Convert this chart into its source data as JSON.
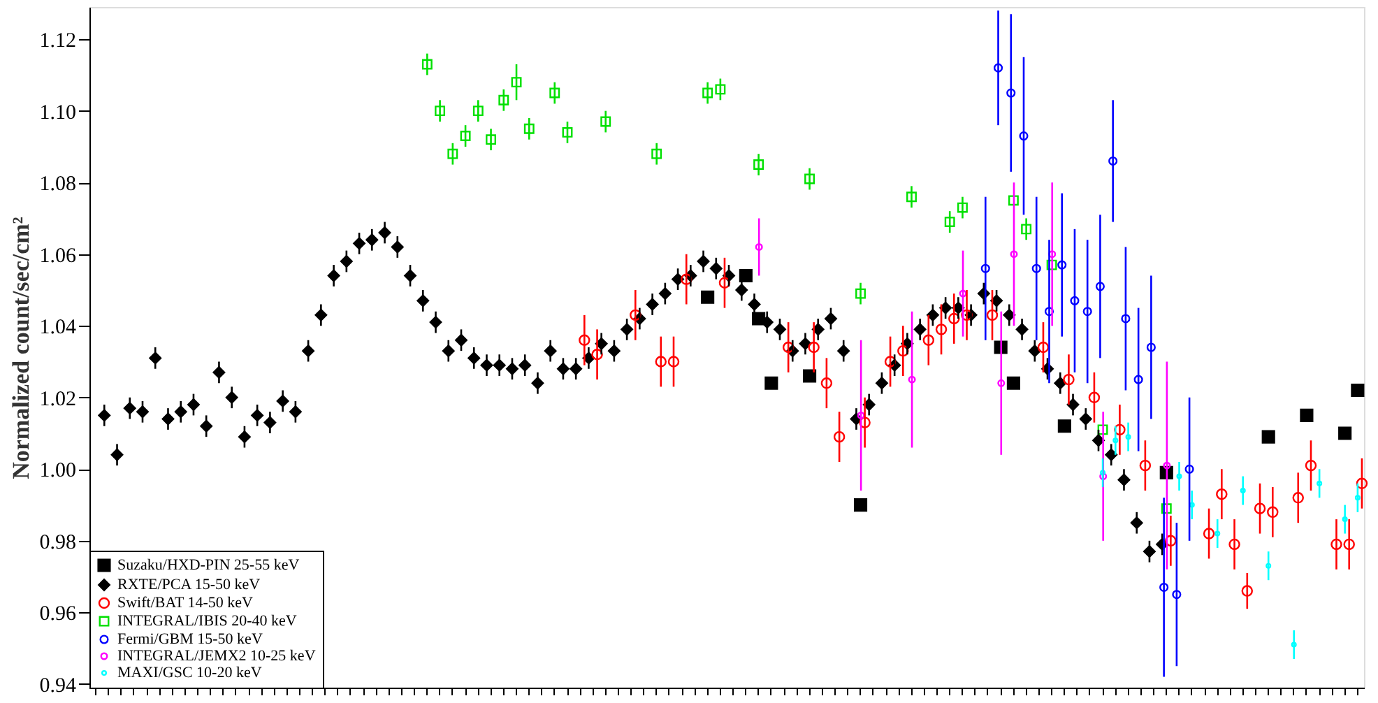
{
  "chart_data": {
    "type": "scatter",
    "ylabel": "Normalized count/sec/cm²",
    "categories": [
      null,
      null,
      null,
      null,
      null,
      null,
      null,
      null,
      null,
      null,
      null,
      null,
      null,
      null,
      null,
      null,
      null,
      null,
      null,
      null,
      null,
      null,
      null,
      null,
      null,
      null,
      null,
      null,
      null,
      null,
      null,
      null,
      null,
      null,
      null,
      null,
      null,
      null,
      null,
      null,
      null,
      null,
      null,
      null,
      null,
      null,
      null,
      null,
      null,
      null,
      null,
      null,
      null,
      null,
      null,
      null,
      null,
      null,
      null,
      null,
      null,
      null,
      null,
      null,
      null,
      null,
      null,
      null,
      null,
      null,
      null,
      null,
      null,
      null,
      null,
      null,
      null,
      null,
      null,
      null,
      null,
      null,
      null,
      null,
      null,
      null,
      null,
      null,
      null,
      null,
      null,
      null,
      null,
      null,
      null,
      null,
      null,
      null,
      null,
      null
    ],
    "ylim": [
      0.939,
      1.129
    ],
    "yticks": [
      0.94,
      0.96,
      0.98,
      {
        "value": 1.0,
        "label": "1.00"
      },
      1.02,
      1.04,
      1.06,
      1.08,
      {
        "value": 1.1,
        "label": "1.10"
      },
      1.12
    ],
    "grid": false,
    "legend": "bottom left",
    "tick_labels": "y",
    "series": [
      {
        "name": "Suzaku/HXD-PIN 25-55 keV",
        "color": "#000000",
        "marker": "square",
        "values": [
          null,
          null,
          null,
          null,
          null,
          null,
          null,
          null,
          null,
          null,
          null,
          null,
          null,
          null,
          null,
          null,
          null,
          null,
          null,
          null,
          null,
          null,
          null,
          null,
          null,
          null,
          null,
          null,
          null,
          null,
          null,
          null,
          null,
          null,
          null,
          null,
          null,
          null,
          null,
          null,
          null,
          null,
          null,
          null,
          null,
          null,
          null,
          null,
          1.048,
          null,
          null,
          1.054,
          1.042,
          1.024,
          null,
          null,
          1.026,
          null,
          null,
          null,
          0.99,
          null,
          null,
          null,
          null,
          null,
          null,
          null,
          null,
          null,
          null,
          1.034,
          1.024,
          null,
          null,
          null,
          1.012,
          null,
          null,
          null,
          null,
          null,
          null,
          null,
          0.999,
          null,
          null,
          null,
          null,
          null,
          null,
          null,
          1.009,
          null,
          null,
          1.015,
          null,
          null,
          1.01,
          1.022
        ]
      },
      {
        "name": "RXTE/PCA 15-50 keV",
        "color": "#000000",
        "marker": "diamond",
        "values": [
          null,
          1.015,
          1.004,
          1.017,
          1.016,
          1.031,
          1.014,
          1.016,
          1.018,
          1.012,
          1.027,
          1.02,
          1.009,
          1.015,
          1.013,
          1.019,
          1.016,
          1.033,
          1.043,
          1.054,
          1.058,
          1.063,
          1.064,
          1.066,
          1.062,
          1.054,
          1.047,
          1.041,
          1.033,
          1.036,
          1.031,
          1.029,
          1.029,
          1.028,
          1.029,
          1.024,
          1.033,
          1.028,
          1.028,
          1.031,
          1.035,
          1.033,
          1.039,
          1.042,
          1.046,
          1.049,
          1.053,
          1.054,
          1.058,
          1.056,
          1.054,
          1.05,
          1.046,
          1.041,
          1.039,
          1.033,
          1.035,
          1.039,
          1.042,
          1.033,
          1.014,
          1.018,
          1.024,
          1.029,
          1.035,
          1.039,
          1.043,
          1.045,
          1.045,
          1.043,
          1.049,
          1.047,
          1.043,
          1.039,
          1.033,
          1.028,
          1.024,
          1.018,
          1.014,
          1.008,
          1.004,
          0.997,
          0.985,
          0.977,
          0.979,
          null,
          null,
          null,
          null,
          null,
          null,
          null,
          null,
          null,
          null,
          null,
          null,
          null,
          null,
          null
        ],
        "errors": [
          null,
          0.003,
          0.003,
          0.003,
          0.003,
          0.003,
          0.003,
          0.003,
          0.003,
          0.003,
          0.003,
          0.003,
          0.003,
          0.003,
          0.003,
          0.003,
          0.003,
          0.003,
          0.003,
          0.003,
          0.003,
          0.003,
          0.003,
          0.003,
          0.003,
          0.003,
          0.003,
          0.003,
          0.003,
          0.003,
          0.003,
          0.003,
          0.003,
          0.003,
          0.003,
          0.003,
          0.003,
          0.003,
          0.003,
          0.003,
          0.003,
          0.003,
          0.003,
          0.003,
          0.003,
          0.003,
          0.003,
          0.003,
          0.003,
          0.003,
          0.003,
          0.003,
          0.003,
          0.003,
          0.003,
          0.003,
          0.003,
          0.003,
          0.003,
          0.003,
          0.003,
          0.003,
          0.003,
          0.003,
          0.003,
          0.003,
          0.003,
          0.003,
          0.003,
          0.003,
          0.003,
          0.003,
          0.003,
          0.003,
          0.003,
          0.003,
          0.003,
          0.003,
          0.003,
          0.003,
          0.003,
          0.003,
          0.003,
          0.003,
          0.003,
          null,
          null,
          null,
          null,
          null,
          null,
          null,
          null,
          null,
          null,
          null,
          null,
          null,
          null,
          null
        ]
      },
      {
        "name": "Swift/BAT 14-50 keV",
        "color": "#ff0000",
        "marker": "circle",
        "values": [
          null,
          null,
          null,
          null,
          null,
          null,
          null,
          null,
          null,
          null,
          null,
          null,
          null,
          null,
          null,
          null,
          null,
          null,
          null,
          null,
          null,
          null,
          null,
          null,
          null,
          null,
          null,
          null,
          null,
          null,
          null,
          null,
          null,
          null,
          null,
          null,
          null,
          null,
          1.036,
          1.032,
          null,
          null,
          1.043,
          null,
          1.03,
          1.03,
          1.053,
          null,
          null,
          1.052,
          null,
          null,
          null,
          null,
          1.034,
          null,
          1.034,
          1.024,
          1.009,
          null,
          1.013,
          null,
          1.03,
          1.033,
          null,
          1.036,
          1.039,
          1.042,
          1.043,
          null,
          1.043,
          null,
          null,
          null,
          1.034,
          null,
          1.025,
          null,
          1.02,
          null,
          1.011,
          null,
          1.001,
          null,
          0.98,
          null,
          null,
          0.982,
          0.993,
          0.979,
          0.966,
          0.989,
          0.988,
          null,
          0.992,
          1.001,
          null,
          0.979,
          0.979,
          0.996
        ],
        "errors": [
          null,
          null,
          null,
          null,
          null,
          null,
          null,
          null,
          null,
          null,
          null,
          null,
          null,
          null,
          null,
          null,
          null,
          null,
          null,
          null,
          null,
          null,
          null,
          null,
          null,
          null,
          null,
          null,
          null,
          null,
          null,
          null,
          null,
          null,
          null,
          null,
          null,
          null,
          0.007,
          0.007,
          null,
          null,
          0.007,
          null,
          0.007,
          0.007,
          0.007,
          null,
          null,
          0.007,
          null,
          null,
          null,
          null,
          0.007,
          null,
          0.007,
          0.007,
          0.007,
          null,
          0.007,
          null,
          0.007,
          0.007,
          null,
          0.007,
          0.007,
          0.007,
          0.007,
          null,
          0.007,
          null,
          null,
          null,
          0.007,
          null,
          0.007,
          null,
          0.007,
          null,
          0.007,
          null,
          0.007,
          null,
          0.007,
          null,
          null,
          0.007,
          0.007,
          0.007,
          0.005,
          0.007,
          0.007,
          null,
          0.007,
          0.007,
          null,
          0.007,
          0.007,
          0.007
        ]
      },
      {
        "name": "INTEGRAL/IBIS 20-40 keV",
        "color": "#00e000",
        "marker": "square",
        "values": [
          null,
          null,
          null,
          null,
          null,
          null,
          null,
          null,
          null,
          null,
          null,
          null,
          null,
          null,
          null,
          null,
          null,
          null,
          null,
          null,
          null,
          null,
          null,
          null,
          null,
          null,
          1.113,
          1.1,
          1.088,
          1.093,
          1.1,
          1.092,
          1.103,
          1.108,
          1.095,
          null,
          1.105,
          1.094,
          null,
          null,
          1.097,
          null,
          null,
          null,
          1.088,
          null,
          null,
          null,
          1.105,
          1.106,
          null,
          null,
          1.085,
          null,
          null,
          null,
          1.081,
          null,
          null,
          null,
          1.049,
          null,
          null,
          null,
          1.076,
          null,
          null,
          1.069,
          1.073,
          null,
          null,
          null,
          1.075,
          1.067,
          null,
          1.057,
          null,
          null,
          null,
          1.011,
          null,
          null,
          null,
          null,
          0.989,
          null,
          null,
          null,
          null,
          null,
          null,
          null,
          null,
          null,
          null,
          null,
          null,
          null,
          null,
          null
        ],
        "errors": [
          null,
          null,
          null,
          null,
          null,
          null,
          null,
          null,
          null,
          null,
          null,
          null,
          null,
          null,
          null,
          null,
          null,
          null,
          null,
          null,
          null,
          null,
          null,
          null,
          null,
          null,
          0.003,
          0.003,
          0.003,
          0.003,
          0.003,
          0.003,
          0.003,
          0.005,
          0.003,
          null,
          0.003,
          0.003,
          null,
          null,
          0.003,
          null,
          null,
          null,
          0.003,
          null,
          null,
          null,
          0.003,
          0.003,
          null,
          null,
          0.003,
          null,
          null,
          null,
          0.003,
          null,
          null,
          null,
          0.003,
          null,
          null,
          null,
          0.003,
          null,
          null,
          0.003,
          0.003,
          null,
          null,
          null,
          null,
          0.003,
          null,
          null,
          null,
          null,
          null,
          null,
          null,
          null,
          null,
          null,
          null,
          null,
          null,
          null,
          null,
          null,
          null,
          null,
          null,
          null,
          null,
          null,
          null,
          null,
          null,
          null
        ]
      },
      {
        "name": "Fermi/GBM 15-50 keV",
        "color": "#0000ff",
        "marker": "circle",
        "values": [
          null,
          null,
          null,
          null,
          null,
          null,
          null,
          null,
          null,
          null,
          null,
          null,
          null,
          null,
          null,
          null,
          null,
          null,
          null,
          null,
          null,
          null,
          null,
          null,
          null,
          null,
          null,
          null,
          null,
          null,
          null,
          null,
          null,
          null,
          null,
          null,
          null,
          null,
          null,
          null,
          null,
          null,
          null,
          null,
          null,
          null,
          null,
          null,
          null,
          null,
          null,
          null,
          null,
          null,
          null,
          null,
          null,
          null,
          null,
          null,
          null,
          null,
          null,
          null,
          null,
          null,
          null,
          null,
          null,
          null,
          1.056,
          1.112,
          1.105,
          1.093,
          1.056,
          1.044,
          1.057,
          1.047,
          1.044,
          1.051,
          1.086,
          1.042,
          1.025,
          1.034,
          0.967,
          0.965,
          1.0,
          null,
          null,
          null,
          null,
          null,
          null,
          null,
          null,
          null,
          null,
          null,
          null,
          null
        ],
        "errors": [
          null,
          null,
          null,
          null,
          null,
          null,
          null,
          null,
          null,
          null,
          null,
          null,
          null,
          null,
          null,
          null,
          null,
          null,
          null,
          null,
          null,
          null,
          null,
          null,
          null,
          null,
          null,
          null,
          null,
          null,
          null,
          null,
          null,
          null,
          null,
          null,
          null,
          null,
          null,
          null,
          null,
          null,
          null,
          null,
          null,
          null,
          null,
          null,
          null,
          null,
          null,
          null,
          null,
          null,
          null,
          null,
          null,
          null,
          null,
          null,
          null,
          null,
          null,
          null,
          null,
          null,
          null,
          null,
          null,
          null,
          0.02,
          0.016,
          0.022,
          0.022,
          0.02,
          0.02,
          0.02,
          0.02,
          0.02,
          0.02,
          0.017,
          0.02,
          0.02,
          0.02,
          0.025,
          0.02,
          0.02,
          null,
          null,
          null,
          null,
          null,
          null,
          null,
          null,
          null,
          null,
          null,
          null,
          null
        ]
      },
      {
        "name": "INTEGRAL/JEMX2 10-25 keV",
        "color": "#ff00ff",
        "marker": "circle",
        "values": [
          null,
          null,
          null,
          null,
          null,
          null,
          null,
          null,
          null,
          null,
          null,
          null,
          null,
          null,
          null,
          null,
          null,
          null,
          null,
          null,
          null,
          null,
          null,
          null,
          null,
          null,
          null,
          null,
          null,
          null,
          null,
          null,
          null,
          null,
          null,
          null,
          null,
          null,
          null,
          null,
          null,
          null,
          null,
          null,
          null,
          null,
          null,
          null,
          null,
          null,
          null,
          null,
          1.062,
          null,
          null,
          null,
          null,
          null,
          null,
          null,
          1.015,
          null,
          null,
          null,
          1.025,
          null,
          null,
          null,
          1.049,
          null,
          null,
          1.024,
          1.06,
          null,
          null,
          1.06,
          null,
          null,
          null,
          0.998,
          null,
          null,
          null,
          null,
          1.001,
          null,
          null,
          null,
          null,
          null,
          null,
          null,
          null,
          null,
          null,
          null,
          null,
          null,
          null,
          null
        ],
        "errors": [
          null,
          null,
          null,
          null,
          null,
          null,
          null,
          null,
          null,
          null,
          null,
          null,
          null,
          null,
          null,
          null,
          null,
          null,
          null,
          null,
          null,
          null,
          null,
          null,
          null,
          null,
          null,
          null,
          null,
          null,
          null,
          null,
          null,
          null,
          null,
          null,
          null,
          null,
          null,
          null,
          null,
          null,
          null,
          null,
          null,
          null,
          null,
          null,
          null,
          null,
          null,
          null,
          0.008,
          null,
          null,
          null,
          null,
          null,
          null,
          null,
          0.021,
          null,
          null,
          null,
          0.019,
          null,
          null,
          null,
          0.012,
          null,
          null,
          0.02,
          0.02,
          null,
          null,
          0.02,
          null,
          null,
          null,
          0.018,
          null,
          null,
          null,
          null,
          0.029,
          null,
          null,
          null,
          null,
          null,
          null,
          null,
          null,
          null,
          null,
          null,
          null,
          null,
          null,
          null
        ]
      },
      {
        "name": "MAXI/GSC 10-20 keV",
        "color": "#00ffff",
        "marker": "circle",
        "values": [
          null,
          null,
          null,
          null,
          null,
          null,
          null,
          null,
          null,
          null,
          null,
          null,
          null,
          null,
          null,
          null,
          null,
          null,
          null,
          null,
          null,
          null,
          null,
          null,
          null,
          null,
          null,
          null,
          null,
          null,
          null,
          null,
          null,
          null,
          null,
          null,
          null,
          null,
          null,
          null,
          null,
          null,
          null,
          null,
          null,
          null,
          null,
          null,
          null,
          null,
          null,
          null,
          null,
          null,
          null,
          null,
          null,
          null,
          null,
          null,
          null,
          null,
          null,
          null,
          null,
          null,
          null,
          null,
          null,
          null,
          null,
          null,
          null,
          null,
          null,
          null,
          null,
          null,
          null,
          0.999,
          1.008,
          1.009,
          null,
          null,
          null,
          0.998,
          0.99,
          null,
          0.982,
          null,
          0.994,
          null,
          0.973,
          null,
          0.951,
          null,
          0.996,
          null,
          0.986,
          0.992
        ],
        "errors": [
          null,
          null,
          null,
          null,
          null,
          null,
          null,
          null,
          null,
          null,
          null,
          null,
          null,
          null,
          null,
          null,
          null,
          null,
          null,
          null,
          null,
          null,
          null,
          null,
          null,
          null,
          null,
          null,
          null,
          null,
          null,
          null,
          null,
          null,
          null,
          null,
          null,
          null,
          null,
          null,
          null,
          null,
          null,
          null,
          null,
          null,
          null,
          null,
          null,
          null,
          null,
          null,
          null,
          null,
          null,
          null,
          null,
          null,
          null,
          null,
          null,
          null,
          null,
          null,
          null,
          null,
          null,
          null,
          null,
          null,
          null,
          null,
          null,
          null,
          null,
          null,
          null,
          null,
          null,
          0.004,
          0.004,
          0.004,
          null,
          null,
          null,
          0.004,
          0.004,
          null,
          0.004,
          null,
          0.004,
          null,
          0.004,
          null,
          0.004,
          null,
          0.004,
          null,
          0.004,
          0.004
        ]
      }
    ]
  }
}
